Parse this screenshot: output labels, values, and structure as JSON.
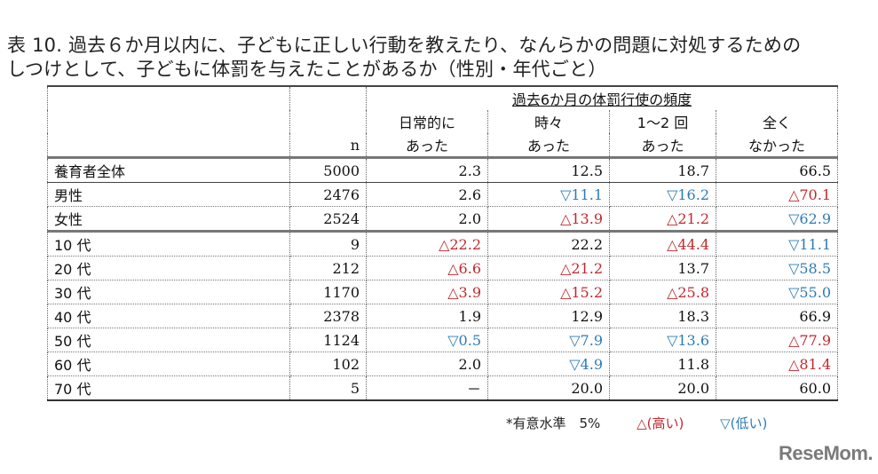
{
  "title": {
    "line1": "表 10. 過去６か月以内に、子どもに正しい行動を教えたり、なんらかの問題に対処するための",
    "line2": "しつけとして、子どもに体罰を与えたことがあるか（性別・年代ごと）"
  },
  "table": {
    "group_header": "過去6か月の体罰行使の頻度",
    "columns": [
      {
        "line1": "",
        "line2": "n"
      },
      {
        "line1": "日常的に",
        "line2": "あった"
      },
      {
        "line1": "時々",
        "line2": "あった"
      },
      {
        "line1": "1～2 回",
        "line2": "あった"
      },
      {
        "line1": "全く",
        "line2": "なかった"
      }
    ],
    "rows": [
      {
        "label": "養育者全体",
        "n": "5000",
        "cells": [
          {
            "text": "2.3",
            "sig": ""
          },
          {
            "text": "12.5",
            "sig": ""
          },
          {
            "text": "18.7",
            "sig": ""
          },
          {
            "text": "66.5",
            "sig": ""
          }
        ]
      },
      {
        "label": "男性",
        "n": "2476",
        "cells": [
          {
            "text": "2.6",
            "sig": ""
          },
          {
            "text": "▽11.1",
            "sig": "down"
          },
          {
            "text": "▽16.2",
            "sig": "down"
          },
          {
            "text": "△70.1",
            "sig": "up"
          }
        ]
      },
      {
        "label": "女性",
        "n": "2524",
        "cells": [
          {
            "text": "2.0",
            "sig": ""
          },
          {
            "text": "△13.9",
            "sig": "up"
          },
          {
            "text": "△21.2",
            "sig": "up"
          },
          {
            "text": "▽62.9",
            "sig": "down"
          }
        ]
      },
      {
        "label": "10 代",
        "n": "9",
        "cells": [
          {
            "text": "△22.2",
            "sig": "up"
          },
          {
            "text": "22.2",
            "sig": ""
          },
          {
            "text": "△44.4",
            "sig": "up"
          },
          {
            "text": "▽11.1",
            "sig": "down"
          }
        ]
      },
      {
        "label": "20 代",
        "n": "212",
        "cells": [
          {
            "text": "△6.6",
            "sig": "up"
          },
          {
            "text": "△21.2",
            "sig": "up"
          },
          {
            "text": "13.7",
            "sig": ""
          },
          {
            "text": "▽58.5",
            "sig": "down"
          }
        ]
      },
      {
        "label": "30 代",
        "n": "1170",
        "cells": [
          {
            "text": "△3.9",
            "sig": "up"
          },
          {
            "text": "△15.2",
            "sig": "up"
          },
          {
            "text": "△25.8",
            "sig": "up"
          },
          {
            "text": "▽55.0",
            "sig": "down"
          }
        ]
      },
      {
        "label": "40 代",
        "n": "2378",
        "cells": [
          {
            "text": "1.9",
            "sig": ""
          },
          {
            "text": "12.9",
            "sig": ""
          },
          {
            "text": "18.3",
            "sig": ""
          },
          {
            "text": "66.9",
            "sig": ""
          }
        ]
      },
      {
        "label": "50 代",
        "n": "1124",
        "cells": [
          {
            "text": "▽0.5",
            "sig": "down"
          },
          {
            "text": "▽7.9",
            "sig": "down"
          },
          {
            "text": "▽13.6",
            "sig": "down"
          },
          {
            "text": "△77.9",
            "sig": "up"
          }
        ]
      },
      {
        "label": "60 代",
        "n": "102",
        "cells": [
          {
            "text": "2.0",
            "sig": ""
          },
          {
            "text": "▽4.9",
            "sig": "down"
          },
          {
            "text": "11.8",
            "sig": ""
          },
          {
            "text": "△81.4",
            "sig": "up"
          }
        ]
      },
      {
        "label": "70 代",
        "n": "5",
        "cells": [
          {
            "text": "－",
            "sig": ""
          },
          {
            "text": "20.0",
            "sig": ""
          },
          {
            "text": "20.0",
            "sig": ""
          },
          {
            "text": "60.0",
            "sig": ""
          }
        ]
      }
    ]
  },
  "footnote": {
    "significance": "*有意水準　5%",
    "high": "△(高い)",
    "low": "▽(低い)"
  },
  "colors": {
    "high": "#c0282d",
    "low": "#2e7ab5"
  },
  "watermark": "ReseMom."
}
